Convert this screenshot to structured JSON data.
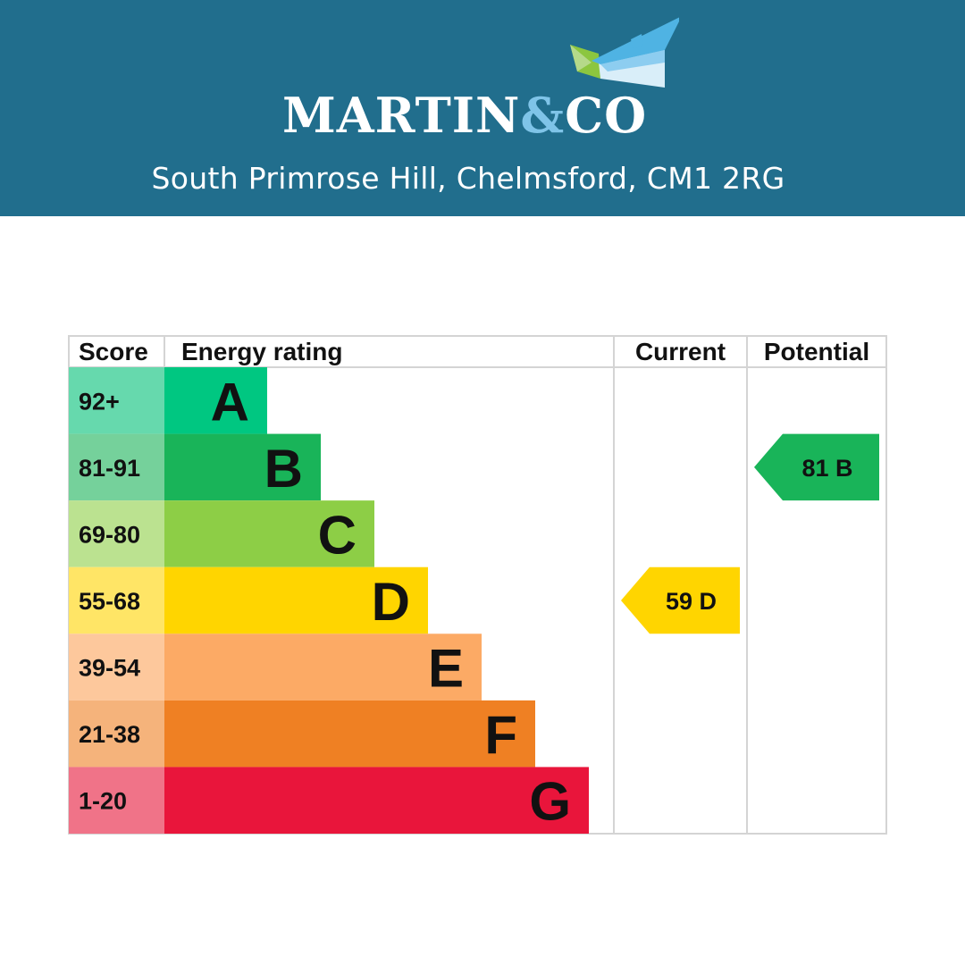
{
  "header": {
    "brand_text_1": "MARTIN",
    "brand_amp": "&",
    "brand_text_2": "CO",
    "address": "South Primrose Hill, Chelmsford, CM1 2RG",
    "banner_color": "#216e8d",
    "amp_color": "#7fc4e8"
  },
  "chart_data": {
    "type": "bar",
    "headers": {
      "score": "Score",
      "rating": "Energy rating",
      "current": "Current",
      "potential": "Potential"
    },
    "bands": [
      {
        "letter": "A",
        "range": "92+",
        "min": 92,
        "max": null,
        "color": "#00c781",
        "light": "#66d9ad"
      },
      {
        "letter": "B",
        "range": "81-91",
        "min": 81,
        "max": 91,
        "color": "#19b459",
        "light": "#75d19b"
      },
      {
        "letter": "C",
        "range": "69-80",
        "min": 69,
        "max": 80,
        "color": "#8dce46",
        "light": "#bbe290"
      },
      {
        "letter": "D",
        "range": "55-68",
        "min": 55,
        "max": 68,
        "color": "#ffd500",
        "light": "#ffe566"
      },
      {
        "letter": "E",
        "range": "39-54",
        "min": 39,
        "max": 54,
        "color": "#fcaa65",
        "light": "#fdc89c"
      },
      {
        "letter": "F",
        "range": "21-38",
        "min": 21,
        "max": 38,
        "color": "#ef8023",
        "light": "#f5b37b"
      },
      {
        "letter": "G",
        "range": "1-20",
        "min": 1,
        "max": 20,
        "color": "#e9153b",
        "light": "#f07388"
      }
    ],
    "current": {
      "value": 59,
      "letter": "D",
      "label": "59  D"
    },
    "potential": {
      "value": 81,
      "letter": "B",
      "label": "81  B"
    }
  }
}
